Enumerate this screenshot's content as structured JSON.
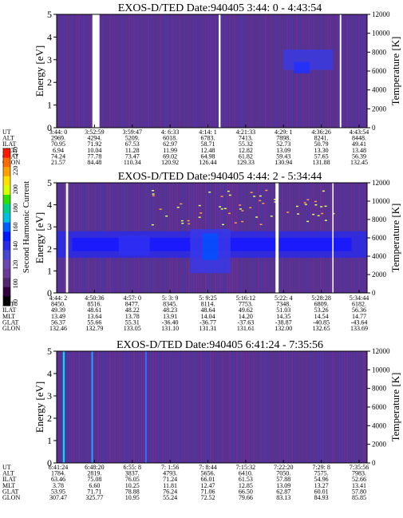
{
  "colorbar": {
    "label": "Second Harmonic Current",
    "ticks": [
      "240",
      "220",
      "200",
      "180",
      "160",
      "140",
      "120",
      "100",
      "80"
    ],
    "colors": [
      "#ff1a00",
      "#ff6a00",
      "#ffa000",
      "#ffe000",
      "#d8ff00",
      "#30e000",
      "#00d08a",
      "#00c0e0",
      "#0060ff",
      "#0018ff",
      "#2a2ae8",
      "#4848d0",
      "#6a48b0",
      "#6a3a98",
      "#502870",
      "#300040",
      "#000000"
    ]
  },
  "chart_data": [
    {
      "type": "heatmap",
      "title": "EXOS-D/TED   Date:940405   3:44: 0 - 4:43:54",
      "ylabel": "Energy [eV]",
      "y2label": "Temperature [K]",
      "ylim": [
        0,
        5
      ],
      "yticks": [
        "0",
        "1",
        "2",
        "3",
        "4",
        "5"
      ],
      "y2lim": [
        0,
        12000
      ],
      "y2ticks": [
        "0",
        "2000",
        "4000",
        "6000",
        "8000",
        "10000",
        "12000"
      ],
      "background": "#5a2f90",
      "gaps": [
        [
          0.115,
          0.138
        ],
        [
          0.522,
          0.528
        ],
        [
          0.912,
          0.917
        ]
      ],
      "patches": [
        {
          "x": 0.73,
          "y": 2.55,
          "w": 0.16,
          "h": 0.9,
          "color": "#3a3ae0"
        },
        {
          "x": 0.765,
          "y": 2.4,
          "w": 0.05,
          "h": 0.5,
          "color": "#2030ff"
        }
      ],
      "stripes": [],
      "row_labels": [
        "UT",
        "ALT",
        "ILAT",
        "MLT",
        "GLAT",
        "GLON"
      ],
      "columns": [
        [
          "3:44: 0",
          "2969.",
          "70.95",
          "6.94",
          "74.24",
          "21.57"
        ],
        [
          "3:52:59",
          "4294.",
          "71.92",
          "10.04",
          "77.78",
          "84.48"
        ],
        [
          "3:59:47",
          "5209.",
          "67.53",
          "11.28",
          "73.47",
          "110.34"
        ],
        [
          "4: 6:33",
          "6018.",
          "62.97",
          "11.99",
          "69.02",
          "120.92"
        ],
        [
          "4:14: 1",
          "6783.",
          "58.71",
          "12.48",
          "64.98",
          "126.44"
        ],
        [
          "4:21:33",
          "7413.",
          "55.32",
          "12.82",
          "61.82",
          "129.33"
        ],
        [
          "4:29: 1",
          "7898.",
          "52.73",
          "13.09",
          "59.43",
          "130.94"
        ],
        [
          "4:36:26",
          "8241.",
          "50.79",
          "13.30",
          "57.65",
          "131.88"
        ],
        [
          "4:43:54",
          "8448.",
          "49.41",
          "13.48",
          "56.39",
          "132.45"
        ]
      ]
    },
    {
      "type": "heatmap",
      "title": "EXOS-D/TED   Date:940405   4:44: 2 - 5:34:44",
      "ylabel": "Energy [eV]",
      "y2label": "Temperature [K]",
      "ylim": [
        0,
        5
      ],
      "yticks": [
        "0",
        "1",
        "2",
        "3",
        "4",
        "5"
      ],
      "y2lim": [
        0,
        12000
      ],
      "y2ticks": [
        "0",
        "2000",
        "4000",
        "6000",
        "8000",
        "10000",
        "12000"
      ],
      "background": "#5a2f90",
      "gaps": [
        [
          0.03,
          0.037
        ],
        [
          0.705,
          0.715
        ],
        [
          0.888,
          0.892
        ]
      ],
      "patches": [
        {
          "x": 0.0,
          "y": 1.6,
          "w": 1.0,
          "h": 1.2,
          "color": "#2a2ae8"
        },
        {
          "x": 0.05,
          "y": 1.9,
          "w": 0.9,
          "h": 0.6,
          "color": "#1818ff"
        },
        {
          "x": 0.2,
          "y": 1.7,
          "w": 0.1,
          "h": 0.9,
          "color": "#3030f0"
        },
        {
          "x": 0.43,
          "y": 0.9,
          "w": 0.13,
          "h": 2.0,
          "color": "#3838e8"
        },
        {
          "x": 0.47,
          "y": 1.5,
          "w": 0.05,
          "h": 1.2,
          "color": "#0050ff"
        }
      ],
      "stripes": [],
      "row_labels": [
        "UT",
        "ALT",
        "ILAT",
        "MLT",
        "GLAT",
        "GLON"
      ],
      "columns": [
        [
          "4:44: 2",
          "8450.",
          "49.39",
          "13.49",
          "56.37",
          "132.46"
        ],
        [
          "4:50:36",
          "8516.",
          "48.61",
          "13.64",
          "55.66",
          "132.79"
        ],
        [
          "4:57: 0",
          "8477.",
          "48.22",
          "13.78",
          "55.31",
          "133.05"
        ],
        [
          "5: 3: 9",
          "8345.",
          "48.23",
          "13.91",
          "-36.40",
          "131.10"
        ],
        [
          "5: 9:25",
          "8114.",
          "48.64",
          "14.04",
          "-36.77",
          "131.31"
        ],
        [
          "5:16:12",
          "7753.",
          "49.62",
          "14.20",
          "-37.63",
          "131.61"
        ],
        [
          "5:22: 4",
          "7348.",
          "51.03",
          "14.35",
          "-38.87",
          "132.00"
        ],
        [
          "5:28:28",
          "6809.",
          "53.26",
          "14.54",
          "-40.85",
          "132.65"
        ],
        [
          "5:34:44",
          "6182.",
          "56.36",
          "14.77",
          "-43.64",
          "133.69"
        ]
      ]
    },
    {
      "type": "heatmap",
      "title": "EXOS-D/TED   Date:940405   6:41:24 - 7:35:56",
      "ylabel": "Energy [eV]",
      "y2label": "Temperature [K]",
      "ylim": [
        0,
        5
      ],
      "yticks": [
        "0",
        "1",
        "2",
        "3",
        "4",
        "5"
      ],
      "y2lim": [
        0,
        12000
      ],
      "y2ticks": [
        "0",
        "2000",
        "4000",
        "6000",
        "8000",
        "10000",
        "12000"
      ],
      "background": "#5a2f90",
      "gaps": [],
      "patches": [],
      "stripes": [
        {
          "x": 0.02,
          "w": 0.006,
          "color": "#00d8ff"
        },
        {
          "x": 0.112,
          "w": 0.005,
          "color": "#20a0ff"
        },
        {
          "x": 0.285,
          "w": 0.005,
          "color": "#3070ff"
        }
      ],
      "row_labels": [
        "UT",
        "ALT",
        "ILAT",
        "MLT",
        "GLAT",
        "GLON"
      ],
      "columns": [
        [
          "6:41:24",
          "1784.",
          "63.46",
          "3.78",
          "53.95",
          "307.47"
        ],
        [
          "6:48:20",
          "2819.",
          "75.08",
          "6.60",
          "71.71",
          "325.77"
        ],
        [
          "6:55: 8",
          "3837.",
          "76.05",
          "10.25",
          "78.88",
          "10.95"
        ],
        [
          "7: 1:56",
          "4793.",
          "71.24",
          "11.81",
          "76.24",
          "55.24"
        ],
        [
          "7: 8:44",
          "5656.",
          "66.01",
          "12.47",
          "71.06",
          "72.52"
        ],
        [
          "7:15:32",
          "6410.",
          "61.53",
          "12.85",
          "66.50",
          "79.66"
        ],
        [
          "7:22:20",
          "7050.",
          "57.88",
          "13.09",
          "62.87",
          "83.13"
        ],
        [
          "7:29: 8",
          "7575.",
          "54.96",
          "13.27",
          "60.01",
          "84.93"
        ],
        [
          "7:35:56",
          "7983.",
          "52.66",
          "13.41",
          "57.80",
          "85.85"
        ]
      ]
    }
  ]
}
